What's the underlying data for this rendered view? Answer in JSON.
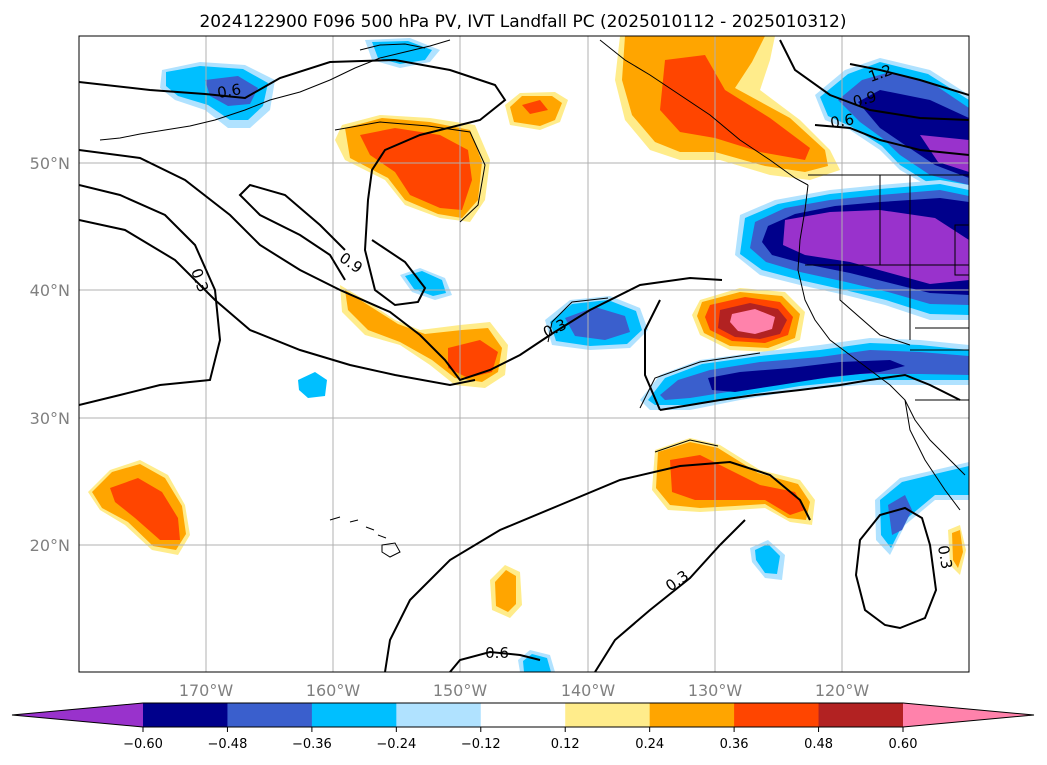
{
  "title": "2024122900 F096 500 hPa PV, IVT Landfall PC (2025010112 - 2025010312)",
  "lat_labels": [
    "50°N",
    "40°N",
    "30°N",
    "20°N"
  ],
  "lon_labels": [
    "170°W",
    "160°W",
    "150°W",
    "140°W",
    "130°W",
    "120°W"
  ],
  "contour_labels": [
    "0.6",
    "0.9",
    "0.3",
    "0.3",
    "0.3",
    "0.6",
    "1.2",
    "0.9",
    "0.6",
    "0.3"
  ],
  "colorbar": {
    "ticks": [
      "−0.60",
      "−0.48",
      "−0.36",
      "−0.24",
      "−0.12",
      "0.12",
      "0.24",
      "0.36",
      "0.48",
      "0.60"
    ],
    "colors": [
      "#9932cc",
      "#00008b",
      "#3a5fcd",
      "#00bfff",
      "#b0e2ff",
      "#ffffff",
      "#ffec8b",
      "#ffa500",
      "#ff4500",
      "#b22222",
      "#ff82ab"
    ]
  },
  "map_data": {
    "type": "filled_contour_map",
    "projection": "plate_carree",
    "lon_range": [
      "180°W",
      "110°W"
    ],
    "lat_range": [
      "10°N",
      "60°N"
    ],
    "grid": true,
    "contour_levels": [
      0.3,
      0.6,
      0.9,
      1.2
    ],
    "colorbar_position": "bottom"
  }
}
